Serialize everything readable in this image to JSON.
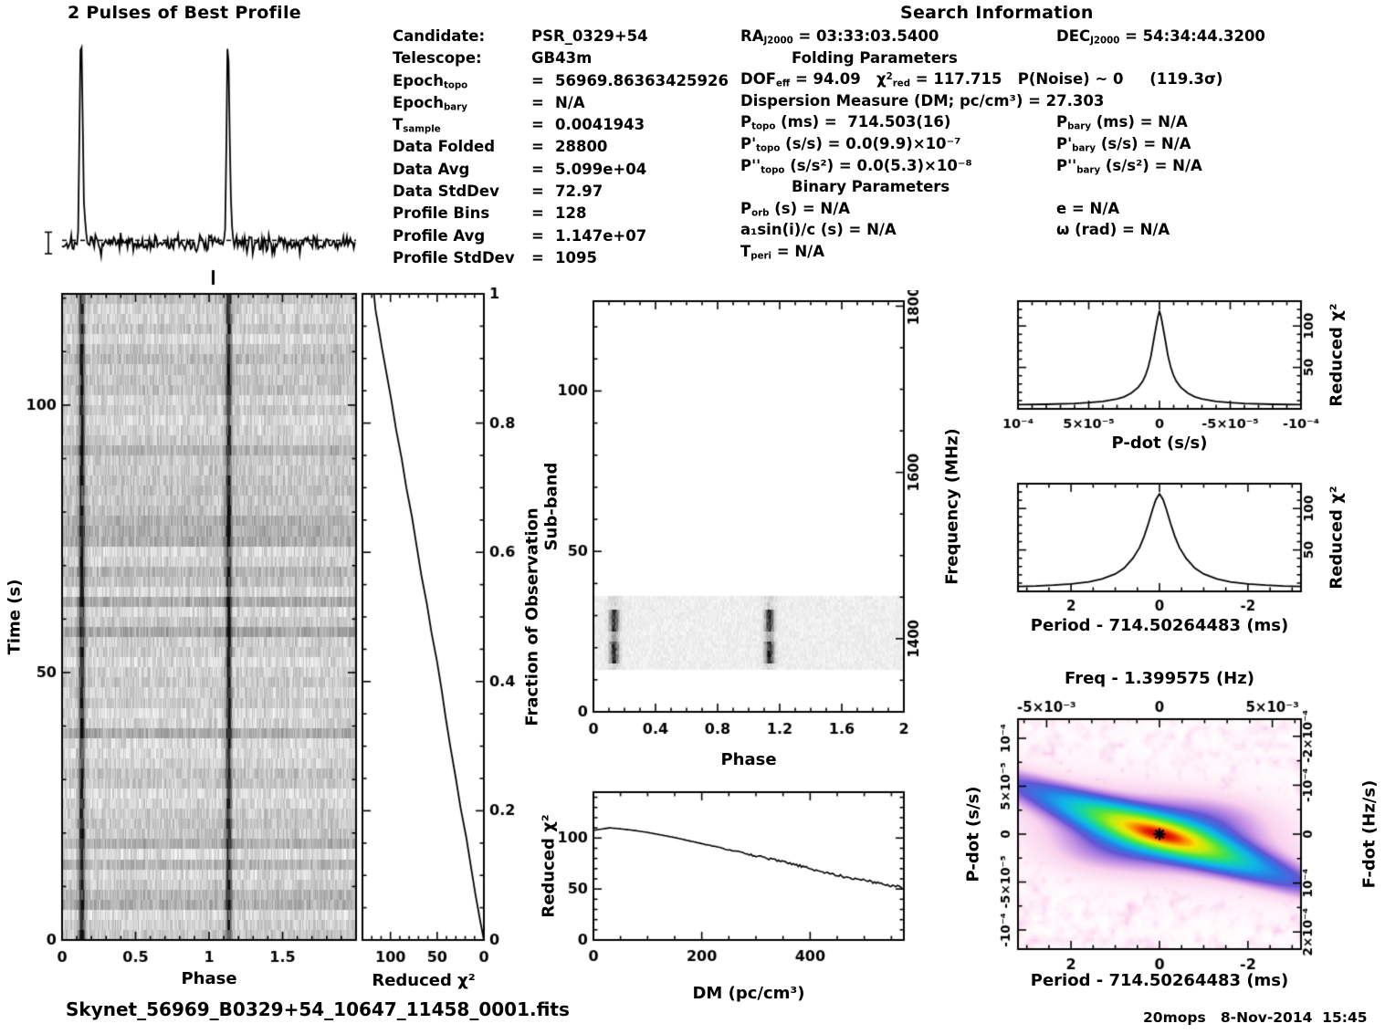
{
  "page": {
    "search_title": "Search Information",
    "footer_left": "Skynet_56969_B0329+54_10647_11458_0001.fits",
    "footer_right": "20mops   8-Nov-2014  15:45"
  },
  "colors": {
    "ink": "#000000",
    "background": "#ffffff"
  },
  "info_left": {
    "rows": [
      {
        "l": [
          [
            "t",
            "Candidate: "
          ]
        ],
        "eq": "",
        "v": "PSR_0329+54"
      },
      {
        "l": [
          [
            "t",
            "Telescope: "
          ]
        ],
        "eq": "",
        "v": "GB43m"
      },
      {
        "l": [
          [
            "t",
            "Epoch"
          ],
          [
            "sub",
            "topo"
          ]
        ],
        "eq": "=",
        "v": "56969.86363425926"
      },
      {
        "l": [
          [
            "t",
            "Epoch"
          ],
          [
            "sub",
            "bary"
          ]
        ],
        "eq": "=",
        "v": "N/A"
      },
      {
        "l": [
          [
            "t",
            "T"
          ],
          [
            "sub",
            "sample"
          ]
        ],
        "eq": "=",
        "v": "0.0041943"
      },
      {
        "l": [
          [
            "t",
            "Data Folded"
          ]
        ],
        "eq": "=",
        "v": "28800"
      },
      {
        "l": [
          [
            "t",
            "Data Avg"
          ]
        ],
        "eq": "=",
        "v": "5.099e+04"
      },
      {
        "l": [
          [
            "t",
            "Data StdDev"
          ]
        ],
        "eq": "=",
        "v": "72.97"
      },
      {
        "l": [
          [
            "t",
            "Profile Bins"
          ]
        ],
        "eq": "=",
        "v": "128"
      },
      {
        "l": [
          [
            "t",
            "Profile Avg"
          ]
        ],
        "eq": "=",
        "v": "1.147e+07"
      },
      {
        "l": [
          [
            "t",
            "Profile StdDev"
          ]
        ],
        "eq": "=",
        "v": "1095"
      }
    ]
  },
  "info_right": {
    "lines": [
      {
        "c": "pair",
        "a": [
          [
            "t",
            "RA"
          ],
          [
            "sub",
            "J2000"
          ],
          [
            "t",
            " = 03:33:03.5400"
          ]
        ],
        "b": [
          [
            "t",
            "DEC"
          ],
          [
            "sub",
            "J2000"
          ],
          [
            "t",
            " = 54:34:44.3200"
          ]
        ]
      },
      {
        "c": "center",
        "a": [
          [
            "t",
            "Folding Parameters"
          ]
        ]
      },
      {
        "c": "single",
        "a": [
          [
            "t",
            "DOF"
          ],
          [
            "sub",
            "eff"
          ],
          [
            "t",
            " = 94.09   χ"
          ],
          [
            "sup",
            "2"
          ],
          [
            "sub",
            "red"
          ],
          [
            "t",
            " = 117.715   P(Noise) ~ 0     (119.3σ)"
          ]
        ]
      },
      {
        "c": "single",
        "a": [
          [
            "t",
            "Dispersion Measure (DM; pc/cm³) = 27.303"
          ]
        ]
      },
      {
        "c": "pair",
        "a": [
          [
            "t",
            "P"
          ],
          [
            "sub",
            "topo"
          ],
          [
            "t",
            " (ms) =  714.503(16)"
          ]
        ],
        "b": [
          [
            "t",
            "P"
          ],
          [
            "sub",
            "bary"
          ],
          [
            "t",
            " (ms) = N/A"
          ]
        ]
      },
      {
        "c": "pair",
        "a": [
          [
            "t",
            "P'"
          ],
          [
            "sub",
            "topo"
          ],
          [
            "t",
            " (s/s) = 0.0(9.9)×10⁻⁷"
          ]
        ],
        "b": [
          [
            "t",
            "P'"
          ],
          [
            "sub",
            "bary"
          ],
          [
            "t",
            " (s/s) = N/A"
          ]
        ]
      },
      {
        "c": "pair",
        "a": [
          [
            "t",
            "P''"
          ],
          [
            "sub",
            "topo"
          ],
          [
            "t",
            " (s/s²) = 0.0(5.3)×10⁻⁸"
          ]
        ],
        "b": [
          [
            "t",
            "P''"
          ],
          [
            "sub",
            "bary"
          ],
          [
            "t",
            " (s/s²) = N/A"
          ]
        ]
      },
      {
        "c": "center",
        "a": [
          [
            "t",
            "Binary Parameters"
          ]
        ]
      },
      {
        "c": "pair",
        "a": [
          [
            "t",
            "P"
          ],
          [
            "sub",
            "orb"
          ],
          [
            "t",
            " (s) = N/A"
          ]
        ],
        "b": [
          [
            "t",
            "e = N/A"
          ]
        ]
      },
      {
        "c": "pair",
        "a": [
          [
            "t",
            "a₁sin(i)/c (s) = N/A"
          ]
        ],
        "b": [
          [
            "t",
            "ω (rad) = N/A"
          ]
        ]
      },
      {
        "c": "single",
        "a": [
          [
            "t",
            "T"
          ],
          [
            "sub",
            "peri"
          ],
          [
            "t",
            " = N/A"
          ]
        ]
      }
    ]
  },
  "chart_data": [
    {
      "id": "best_profile",
      "type": "line",
      "title": "2 Pulses of Best Profile",
      "x_range": [
        0,
        2
      ],
      "n_bins_per_period": 128,
      "periods_shown": 2,
      "pulse_phase": 0.13,
      "pulse_keypoints": [
        [
          0.095,
          0
        ],
        [
          0.103,
          0.02
        ],
        [
          0.11,
          0.1
        ],
        [
          0.117,
          0.45
        ],
        [
          0.124,
          0.92
        ],
        [
          0.13,
          1.0
        ],
        [
          0.136,
          0.8
        ],
        [
          0.143,
          0.42
        ],
        [
          0.15,
          0.16
        ],
        [
          0.158,
          0.06
        ],
        [
          0.17,
          0.015
        ],
        [
          0.185,
          0
        ]
      ],
      "baseline_level": 0.045,
      "baseline_noise": 0.02,
      "dashed_line_level": 0.062
    },
    {
      "id": "time_vs_phase",
      "type": "heatmap",
      "xlabel": "Phase",
      "ylabel": "Time (s)",
      "x_range": [
        0,
        2
      ],
      "x_ticks": [
        0,
        0.5,
        1,
        1.5
      ],
      "x_tick_labels": [
        "0",
        "0.5",
        "1",
        "1.5"
      ],
      "y_range": [
        0,
        120.8
      ],
      "y_ticks": [
        0,
        50,
        100
      ],
      "y_tick_labels": [
        "0",
        "50",
        "100"
      ],
      "n_subints": 64,
      "n_bins": 256,
      "pulse_phases": [
        0.13,
        1.13
      ]
    },
    {
      "id": "chi2_vs_fraction",
      "type": "line",
      "xlabel": "Reduced χ²",
      "ylabel_right": "Fraction of Observation",
      "x_range": [
        130,
        0
      ],
      "x_ticks": [
        100,
        50,
        0
      ],
      "x_tick_labels": [
        "100",
        "50",
        "0"
      ],
      "y_range": [
        0,
        1
      ],
      "y_ticks": [
        0,
        0.2,
        0.4,
        0.6,
        0.8,
        1
      ],
      "y_tick_labels": [
        "0",
        "0.2",
        "0.4",
        "0.6",
        "0.8",
        "1"
      ],
      "points": [
        [
          0,
          0
        ],
        [
          4,
          0.03
        ],
        [
          9,
          0.07
        ],
        [
          14,
          0.115
        ],
        [
          19,
          0.16
        ],
        [
          25,
          0.205
        ],
        [
          30,
          0.25
        ],
        [
          36,
          0.3
        ],
        [
          41,
          0.345
        ],
        [
          45,
          0.385
        ],
        [
          50,
          0.43
        ],
        [
          56,
          0.475
        ],
        [
          61,
          0.52
        ],
        [
          67,
          0.565
        ],
        [
          72,
          0.61
        ],
        [
          77,
          0.655
        ],
        [
          83,
          0.7
        ],
        [
          88,
          0.745
        ],
        [
          94,
          0.79
        ],
        [
          99,
          0.835
        ],
        [
          104,
          0.875
        ],
        [
          109,
          0.915
        ],
        [
          113,
          0.95
        ],
        [
          116,
          0.975
        ],
        [
          117.7,
          1.0
        ]
      ]
    },
    {
      "id": "subband_vs_phase",
      "type": "heatmap",
      "xlabel": "Phase",
      "ylabel": "Sub-band",
      "ylabel_right": "Frequency (MHz)",
      "x_range": [
        0,
        2
      ],
      "x_ticks": [
        0,
        0.4,
        0.8,
        1.2,
        1.6,
        2
      ],
      "x_tick_labels": [
        "0",
        "0.4",
        "0.8",
        "1.2",
        "1.6",
        "2"
      ],
      "y_range": [
        0,
        128
      ],
      "y_ticks": [
        0,
        50,
        100
      ],
      "y_tick_labels": [
        "0",
        "50",
        "100"
      ],
      "freq_range_mhz": [
        1312,
        1806
      ],
      "freq_ticks": [
        1400,
        1600,
        1800
      ],
      "freq_tick_labels": [
        "1400",
        "1600",
        "1800"
      ],
      "signal_subbands": [
        13,
        35
      ],
      "core_subbands": [
        15,
        31
      ],
      "pulse_phases": [
        0.13,
        1.13
      ]
    },
    {
      "id": "chi2_vs_dm",
      "type": "line",
      "xlabel": "DM (pc/cm³)",
      "ylabel": "Reduced χ²",
      "x_range": [
        0,
        573
      ],
      "x_ticks": [
        0,
        200,
        400
      ],
      "x_tick_labels": [
        "0",
        "200",
        "400"
      ],
      "y_range": [
        0,
        145
      ],
      "y_ticks": [
        0,
        50,
        100
      ],
      "y_tick_labels": [
        "0",
        "50",
        "100"
      ],
      "best_dm": 27.303,
      "noise_amp": 1.3,
      "points": [
        [
          0,
          107.5
        ],
        [
          20,
          109.2
        ],
        [
          30,
          110
        ],
        [
          50,
          109
        ],
        [
          75,
          107.5
        ],
        [
          100,
          105.5
        ],
        [
          125,
          103
        ],
        [
          150,
          100.5
        ],
        [
          175,
          97.5
        ],
        [
          200,
          94.5
        ],
        [
          225,
          91.5
        ],
        [
          250,
          88.5
        ],
        [
          275,
          85.5
        ],
        [
          300,
          82.5
        ],
        [
          325,
          79.5
        ],
        [
          350,
          76.5
        ],
        [
          375,
          73.5
        ],
        [
          400,
          70
        ],
        [
          425,
          66.5
        ],
        [
          450,
          63.5
        ],
        [
          475,
          61
        ],
        [
          500,
          58.5
        ],
        [
          525,
          56
        ],
        [
          550,
          53.5
        ],
        [
          573,
          51.5
        ]
      ]
    },
    {
      "id": "chi2_vs_pdot",
      "type": "line",
      "xlabel": "P-dot (s/s)",
      "ylabel_right": "Reduced χ²",
      "x_ticks": [
        0.0001,
        5e-05,
        0,
        -5e-05,
        -0.0001
      ],
      "x_tick_labels": [
        "10⁻⁴",
        "5×10⁻⁵",
        "0",
        "-5×10⁻⁵",
        "-10⁻⁴"
      ],
      "y_range": [
        0,
        130
      ],
      "y_ticks": [
        50,
        100
      ],
      "peak_chi2": 117.715,
      "points": [
        [
          -0.0001,
          5
        ],
        [
          -8e-05,
          5.5
        ],
        [
          -6e-05,
          6.5
        ],
        [
          -5e-05,
          7.5
        ],
        [
          -4e-05,
          9
        ],
        [
          -3e-05,
          12
        ],
        [
          -2.5e-05,
          14.5
        ],
        [
          -2e-05,
          19
        ],
        [
          -1.5e-05,
          26
        ],
        [
          -1.2e-05,
          33
        ],
        [
          -1e-05,
          40
        ],
        [
          -8e-06,
          50
        ],
        [
          -6e-06,
          64
        ],
        [
          -4e-06,
          84
        ],
        [
          -2e-06,
          103
        ],
        [
          -1e-06,
          112
        ],
        [
          0,
          117.7
        ],
        [
          1e-06,
          112
        ],
        [
          2e-06,
          103
        ],
        [
          4e-06,
          84
        ],
        [
          6e-06,
          64
        ],
        [
          8e-06,
          50
        ],
        [
          1e-05,
          40
        ],
        [
          1.2e-05,
          33
        ],
        [
          1.5e-05,
          26
        ],
        [
          2e-05,
          19
        ],
        [
          2.5e-05,
          14.5
        ],
        [
          3e-05,
          12
        ],
        [
          4e-05,
          9
        ],
        [
          5e-05,
          7.5
        ],
        [
          6e-05,
          6.5
        ],
        [
          8e-05,
          5.5
        ],
        [
          0.0001,
          5
        ]
      ]
    },
    {
      "id": "chi2_vs_period",
      "type": "line",
      "xlabel": "Period - 714.50264483 (ms)",
      "ylabel_right": "Reduced χ²",
      "x_ticks": [
        2,
        0,
        -2
      ],
      "x_tick_labels": [
        "2",
        "0",
        "-2"
      ],
      "y_range": [
        0,
        130
      ],
      "y_ticks": [
        50,
        100
      ],
      "peak_chi2": 117.715,
      "points": [
        [
          -3.2,
          6
        ],
        [
          -2.8,
          6.5
        ],
        [
          -2.4,
          7.5
        ],
        [
          -2.0,
          9
        ],
        [
          -1.6,
          11.5
        ],
        [
          -1.3,
          15
        ],
        [
          -1.0,
          21
        ],
        [
          -0.8,
          28
        ],
        [
          -0.6,
          40
        ],
        [
          -0.45,
          53
        ],
        [
          -0.35,
          66
        ],
        [
          -0.25,
          82
        ],
        [
          -0.15,
          100
        ],
        [
          -0.08,
          111
        ],
        [
          0,
          117.7
        ],
        [
          0.08,
          111
        ],
        [
          0.15,
          100
        ],
        [
          0.25,
          82
        ],
        [
          0.35,
          66
        ],
        [
          0.45,
          53
        ],
        [
          0.6,
          40
        ],
        [
          0.8,
          28
        ],
        [
          1.0,
          21
        ],
        [
          1.3,
          15
        ],
        [
          1.6,
          11.5
        ],
        [
          2.0,
          9
        ],
        [
          2.4,
          7.5
        ],
        [
          2.8,
          6.5
        ],
        [
          3.2,
          6
        ]
      ]
    },
    {
      "id": "pdot_vs_period_map",
      "type": "heatmap",
      "title": "Freq - 1.399575 (Hz)",
      "xlabel": "Period - 714.50264483 (ms)",
      "ylabel": "P-dot (s/s)",
      "ylabel_right": "F-dot (Hz/s)",
      "x_range_ms": [
        3.2,
        -3.2
      ],
      "x_ticks": [
        2,
        0,
        -2
      ],
      "x_tick_labels": [
        "2",
        "0",
        "-2"
      ],
      "top_ticks_hz": [
        -0.005,
        0,
        0.005
      ],
      "top_tick_labels": [
        "-5×10⁻³",
        "0",
        "5×10⁻³"
      ],
      "pdot_range": [
        0.00012,
        -0.00012
      ],
      "y_ticks": [
        0.0001,
        5e-05,
        0,
        -5e-05,
        -0.0001
      ],
      "y_tick_labels": [
        "10⁻⁴",
        "5×10⁻⁵",
        "0",
        "-5×10⁻⁵",
        "-10⁻⁴"
      ],
      "fdot_ticks": [
        -0.0002,
        -0.0001,
        0,
        0.0001,
        0.0002
      ],
      "fdot_tick_labels": [
        "-2×10⁻⁴",
        "-10⁻⁴",
        "0",
        "10⁻⁴",
        "2×10⁻⁴"
      ],
      "peak_chi2": 117.715,
      "best_period_offset_ms": 0,
      "best_pdot": 0,
      "marker": "asterisk",
      "period_sec": 0.71450264483,
      "ridge": {
        "slope_ms_per_unit_pdot": 60400,
        "sigma_perp_ms": 0.75,
        "skirt_sigma_ms": 2.4,
        "skirt_amp": 0.3,
        "along_halfwidth_ms": 1.4
      },
      "colormap_stops": [
        [
          0,
          "#ffffff"
        ],
        [
          0.03,
          "#ffeef8"
        ],
        [
          0.07,
          "#f8d2ee"
        ],
        [
          0.11,
          "#c490e4"
        ],
        [
          0.16,
          "#6456d6"
        ],
        [
          0.22,
          "#2b7ae4"
        ],
        [
          0.3,
          "#10b4ec"
        ],
        [
          0.4,
          "#14d6a4"
        ],
        [
          0.52,
          "#54e43c"
        ],
        [
          0.64,
          "#b4ec14"
        ],
        [
          0.76,
          "#f4e400"
        ],
        [
          0.86,
          "#fa9600"
        ],
        [
          0.94,
          "#f03800"
        ],
        [
          1,
          "#c80000"
        ]
      ]
    }
  ]
}
